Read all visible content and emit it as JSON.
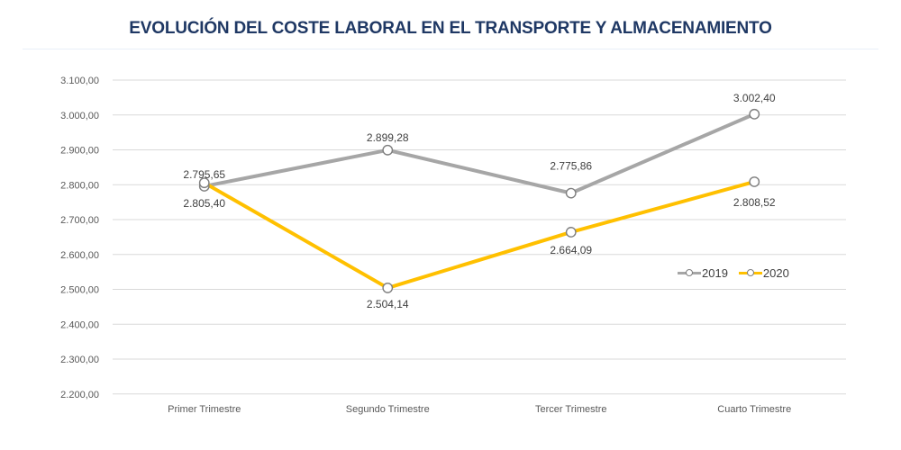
{
  "title": "EVOLUCIÓN DEL COSTE LABORAL EN EL TRANSPORTE Y ALMACENAMIENTO",
  "title_color": "#1f3864",
  "chart_data": {
    "type": "line",
    "title": "EVOLUCIÓN DEL COSTE LABORAL EN EL TRANSPORTE Y ALMACENAMIENTO",
    "categories": [
      "Primer Trimestre",
      "Segundo Trimestre",
      "Tercer Trimestre",
      "Cuarto Trimestre"
    ],
    "series": [
      {
        "name": "2019",
        "color": "#a6a6a6",
        "values": [
          2795.65,
          2899.28,
          2775.86,
          3002.4
        ],
        "value_labels": [
          "2.795,65",
          "2.899,28",
          "2.775,86",
          "3.002,40"
        ],
        "label_dy": [
          -13,
          -14,
          -30,
          -18
        ]
      },
      {
        "name": "2020",
        "color": "#ffc000",
        "values": [
          2805.4,
          2504.14,
          2664.09,
          2808.52
        ],
        "value_labels": [
          "2.805,40",
          "2.504,14",
          "2.664,09",
          "2.808,52"
        ],
        "label_dy": [
          23,
          18,
          20,
          23
        ]
      }
    ],
    "y_axis": {
      "min": 2200,
      "max": 3100,
      "step": 100,
      "tick_labels": [
        "2.200,00",
        "2.300,00",
        "2.400,00",
        "2.500,00",
        "2.600,00",
        "2.700,00",
        "2.800,00",
        "2.900,00",
        "3.000,00",
        "3.100,00"
      ]
    },
    "xlabel": "",
    "ylabel": "",
    "grid": true,
    "legend_position": "inside-right",
    "marker": {
      "shape": "circle",
      "fill": "#ffffff",
      "stroke": "#7f7f7f"
    },
    "gridline_color": "#d9d9d9",
    "axis_label_color": "#595959",
    "data_label_color": "#404040"
  }
}
